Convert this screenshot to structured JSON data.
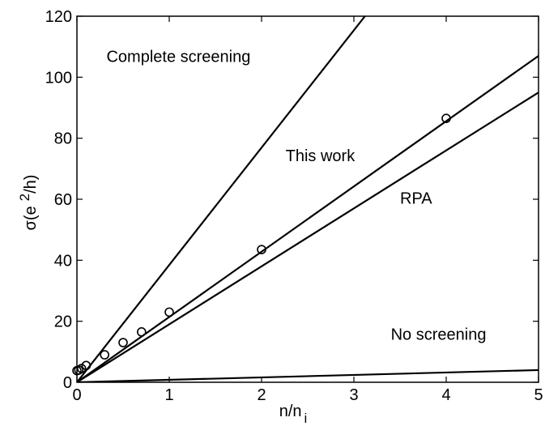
{
  "chart_data": {
    "type": "line",
    "title": "",
    "xlabel": "n/n",
    "xlabel_subscript": "i",
    "ylabel": "σ(e",
    "ylabel_sup": "2",
    "ylabel_tail": "/h)",
    "xlim": [
      0,
      5
    ],
    "ylim": [
      0,
      120
    ],
    "xticks": [
      "0",
      "1",
      "2",
      "3",
      "4",
      "5"
    ],
    "yticks": [
      "0",
      "20",
      "40",
      "60",
      "80",
      "100",
      "120"
    ],
    "grid": false,
    "series": [
      {
        "x": [
          0,
          3.12
        ],
        "y": [
          0,
          120
        ]
      },
      {
        "x": [
          0,
          5
        ],
        "y": [
          0,
          107
        ]
      },
      {
        "x": [
          0,
          5
        ],
        "y": [
          0,
          95
        ]
      },
      {
        "x": [
          0,
          5
        ],
        "y": [
          0,
          4
        ]
      }
    ],
    "points": {
      "x": [
        0.0,
        0.02,
        0.05,
        0.1,
        0.3,
        0.5,
        0.7,
        1.0,
        2.0,
        4.0
      ],
      "y": [
        3.8,
        4.0,
        4.5,
        5.5,
        9.0,
        13.0,
        16.5,
        23.0,
        43.5,
        86.5
      ]
    },
    "annotations": [
      {
        "text": "Complete screening",
        "x": 0.32,
        "y": 105
      },
      {
        "text": "This work",
        "x": 2.26,
        "y": 72.5
      },
      {
        "text": "RPA",
        "x": 3.5,
        "y": 58.5
      },
      {
        "text": "No screening",
        "x": 3.4,
        "y": 14
      }
    ]
  }
}
